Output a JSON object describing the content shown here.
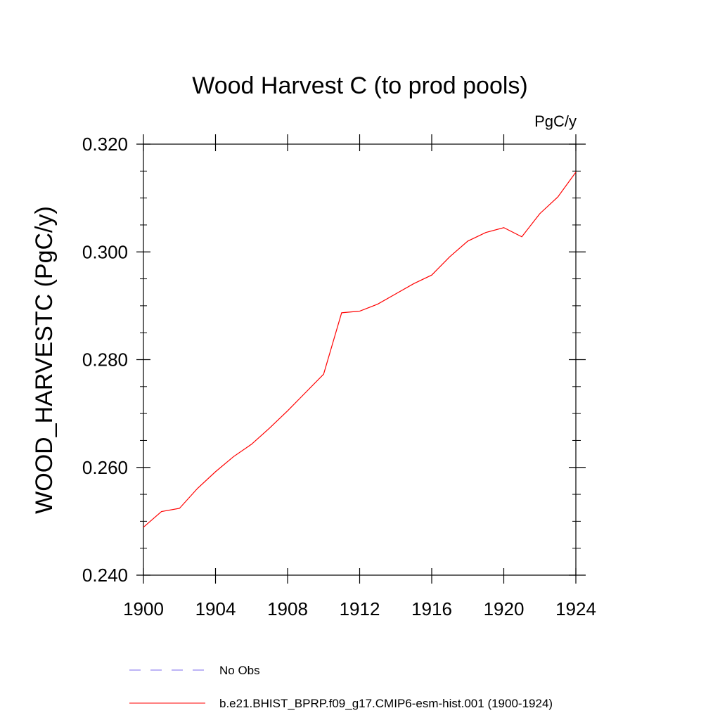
{
  "chart_data": {
    "type": "line",
    "title": "Wood Harvest C (to prod pools)",
    "units_label": "PgC/y",
    "ylabel": "WOOD_HARVESTC  (PgC/y)",
    "xlabel": "",
    "xlim": [
      1900,
      1924
    ],
    "ylim": [
      0.24,
      0.32
    ],
    "x_ticks": [
      "1900",
      "1904",
      "1908",
      "1912",
      "1916",
      "1920",
      "1924"
    ],
    "y_ticks": [
      "0.240",
      "0.260",
      "0.280",
      "0.300",
      "0.320"
    ],
    "grid": false,
    "series": [
      {
        "name": "b.e21.BHIST_BPRP.f09_g17.CMIP6-esm-hist.001 (1900-1924)",
        "color": "#ff0000",
        "style": "solid",
        "x": [
          1900,
          1901,
          1902,
          1903,
          1904,
          1905,
          1906,
          1907,
          1908,
          1909,
          1910,
          1911,
          1912,
          1913,
          1914,
          1915,
          1916,
          1917,
          1918,
          1919,
          1920,
          1921,
          1922,
          1923,
          1924
        ],
        "values": [
          0.2489,
          0.2518,
          0.2524,
          0.2561,
          0.2592,
          0.262,
          0.2643,
          0.2673,
          0.2705,
          0.2739,
          0.2773,
          0.2887,
          0.289,
          0.2903,
          0.2922,
          0.2941,
          0.2957,
          0.2991,
          0.302,
          0.3036,
          0.3045,
          0.3028,
          0.3071,
          0.3102,
          0.3148
        ]
      }
    ],
    "legend": {
      "placement": "bottom",
      "entries": [
        {
          "label": "No Obs",
          "color": "#7b68ee",
          "style": "dashed"
        },
        {
          "label": "b.e21.BHIST_BPRP.f09_g17.CMIP6-esm-hist.001 (1900-1924)",
          "color": "#ff0000",
          "style": "solid"
        }
      ]
    }
  }
}
